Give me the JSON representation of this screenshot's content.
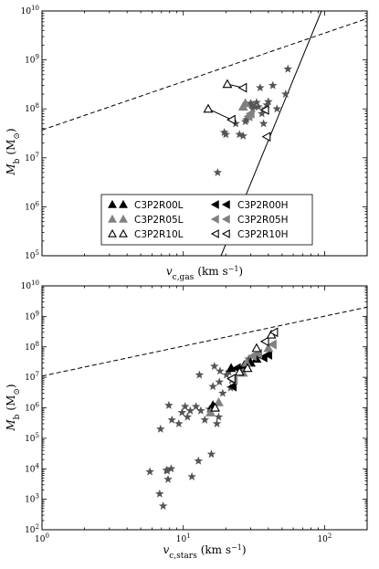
{
  "chart_data": [
    {
      "type": "scatter",
      "xlabel": "v_c,gas (km s⁻¹)",
      "ylabel": "M_b (M_⊙)",
      "xscale": "log",
      "yscale": "log",
      "xlim": [
        1,
        200
      ],
      "ylim": [
        100000,
        10000000000
      ],
      "y_ticks": [
        {
          "v": 100000,
          "b": "10",
          "e": "5"
        },
        {
          "v": 1000000,
          "b": "10",
          "e": "6"
        },
        {
          "v": 10000000,
          "b": "10",
          "e": "7"
        },
        {
          "v": 100000000,
          "b": "10",
          "e": "8"
        },
        {
          "v": 1000000000,
          "b": "10",
          "e": "9"
        },
        {
          "v": 10000000000,
          "b": "10",
          "e": "10"
        }
      ],
      "lines": [
        {
          "style": "dashed",
          "points": [
            [
              1,
              37000000
            ],
            [
              200,
              7000000000
            ]
          ]
        },
        {
          "style": "solid",
          "points": [
            [
              18.5,
              100000
            ],
            [
              95,
              10000000000
            ]
          ]
        }
      ],
      "stars": [
        [
          17.5,
          5000000
        ],
        [
          19.5,
          33000000
        ],
        [
          20,
          30000000
        ],
        [
          23.5,
          50000000
        ],
        [
          25,
          30000000
        ],
        [
          26.5,
          28000000
        ],
        [
          27.5,
          55000000
        ],
        [
          28,
          60000000
        ],
        [
          29.5,
          70000000
        ],
        [
          30,
          130000000
        ],
        [
          30.5,
          120000000
        ],
        [
          31,
          100000000
        ],
        [
          32,
          110000000
        ],
        [
          33,
          135000000
        ],
        [
          34,
          110000000
        ],
        [
          35,
          270000000
        ],
        [
          36,
          80000000
        ],
        [
          37,
          50000000
        ],
        [
          38,
          100000000
        ],
        [
          39,
          120000000
        ],
        [
          40,
          140000000
        ],
        [
          43,
          300000000
        ],
        [
          46,
          100000000
        ],
        [
          53,
          200000000
        ],
        [
          55,
          650000000
        ]
      ],
      "markers": [
        {
          "x": 26.5,
          "y": 110000000,
          "shape": "triangle-up",
          "fill": "#808080",
          "stroke": "#808080"
        },
        {
          "x": 27.5,
          "y": 130000000,
          "shape": "triangle-up",
          "fill": "#808080",
          "stroke": "#808080"
        },
        {
          "x": 29,
          "y": 70000000,
          "shape": "triangle-left",
          "fill": "#808080",
          "stroke": "#808080"
        },
        {
          "x": 30,
          "y": 80000000,
          "shape": "triangle-left",
          "fill": "#808080",
          "stroke": "#808080"
        },
        {
          "x": 20.5,
          "y": 320000000,
          "shape": "triangle-up",
          "fill": "#ffffff",
          "stroke": "#000000"
        },
        {
          "x": 15,
          "y": 100000000,
          "shape": "triangle-up",
          "fill": "#ffffff",
          "stroke": "#000000"
        },
        {
          "x": 26.5,
          "y": 270000000,
          "shape": "triangle-left",
          "fill": "#ffffff",
          "stroke": "#000000"
        },
        {
          "x": 22,
          "y": 60000000,
          "shape": "triangle-left",
          "fill": "#ffffff",
          "stroke": "#000000"
        },
        {
          "x": 38,
          "y": 95000000,
          "shape": "triangle-left",
          "fill": "#ffffff",
          "stroke": "#000000"
        },
        {
          "x": 39,
          "y": 27000000,
          "shape": "triangle-left",
          "fill": "#ffffff",
          "stroke": "#000000"
        }
      ],
      "connectors": [
        [
          [
            20.5,
            320000000
          ],
          [
            26.5,
            270000000
          ]
        ],
        [
          [
            15,
            100000000
          ],
          [
            22,
            60000000
          ]
        ]
      ],
      "legend": {
        "placement": "lower-center",
        "entries": [
          {
            "label": "C3P2R00L",
            "shape": "triangle-up",
            "fill": "#000000",
            "stroke": "#000000"
          },
          {
            "label": "C3P2R00H",
            "shape": "triangle-left",
            "fill": "#000000",
            "stroke": "#000000"
          },
          {
            "label": "C3P2R05L",
            "shape": "triangle-up",
            "fill": "#808080",
            "stroke": "#808080"
          },
          {
            "label": "C3P2R05H",
            "shape": "triangle-left",
            "fill": "#808080",
            "stroke": "#808080"
          },
          {
            "label": "C3P2R10L",
            "shape": "triangle-up",
            "fill": "#ffffff",
            "stroke": "#000000"
          },
          {
            "label": "C3P2R10H",
            "shape": "triangle-left",
            "fill": "#ffffff",
            "stroke": "#000000"
          }
        ]
      }
    },
    {
      "type": "scatter",
      "xlabel": "v_c,stars (km s⁻¹)",
      "ylabel": "M_b (M_⊙)",
      "xscale": "log",
      "yscale": "log",
      "xlim": [
        1,
        200
      ],
      "ylim": [
        100,
        10000000000
      ],
      "x_ticks": [
        {
          "v": 1,
          "b": "10",
          "e": "0"
        },
        {
          "v": 10,
          "b": "10",
          "e": "1"
        },
        {
          "v": 100,
          "b": "10",
          "e": "2"
        }
      ],
      "y_ticks": [
        {
          "v": 100,
          "b": "10",
          "e": "2"
        },
        {
          "v": 1000,
          "b": "10",
          "e": "3"
        },
        {
          "v": 10000,
          "b": "10",
          "e": "4"
        },
        {
          "v": 100000,
          "b": "10",
          "e": "5"
        },
        {
          "v": 1000000,
          "b": "10",
          "e": "6"
        },
        {
          "v": 10000000,
          "b": "10",
          "e": "7"
        },
        {
          "v": 100000000,
          "b": "10",
          "e": "8"
        },
        {
          "v": 1000000000,
          "b": "10",
          "e": "9"
        },
        {
          "v": 10000000000,
          "b": "10",
          "e": "10"
        }
      ],
      "lines": [
        {
          "style": "dashed",
          "points": [
            [
              1,
              11000000
            ],
            [
              200,
              2000000000
            ]
          ]
        }
      ],
      "stars": [
        [
          5.8,
          8000
        ],
        [
          6.8,
          1500
        ],
        [
          7.2,
          600
        ],
        [
          6.9,
          200000
        ],
        [
          7.6,
          9000
        ],
        [
          7.8,
          4500
        ],
        [
          7.7,
          8500
        ],
        [
          8.2,
          10000
        ],
        [
          7.9,
          1200000
        ],
        [
          8.3,
          400000
        ],
        [
          9.3,
          300000
        ],
        [
          9.8,
          700000
        ],
        [
          10.3,
          1100000
        ],
        [
          10.7,
          500000
        ],
        [
          11.2,
          800000
        ],
        [
          11.5,
          5500
        ],
        [
          12.3,
          1100000
        ],
        [
          12.8,
          18000
        ],
        [
          13,
          12000000
        ],
        [
          13.3,
          800000
        ],
        [
          14.2,
          400000
        ],
        [
          15.3,
          900000
        ],
        [
          15.8,
          30000
        ],
        [
          16.2,
          5000000
        ],
        [
          16.6,
          23000000
        ],
        [
          17.3,
          300000
        ],
        [
          17.8,
          500000
        ],
        [
          18,
          7000000
        ],
        [
          18.2,
          16000000
        ],
        [
          19,
          3000000
        ],
        [
          20.2,
          12000000
        ],
        [
          21,
          15000000
        ],
        [
          21.6,
          4500000
        ],
        [
          22,
          8000000
        ],
        [
          26,
          16000000
        ],
        [
          29,
          40000000
        ]
      ],
      "markers": [
        {
          "x": 16.2,
          "y": 1200000,
          "shape": "triangle-up",
          "fill": "#000000",
          "stroke": "#000000"
        },
        {
          "x": 16.6,
          "y": 1000000,
          "shape": "triangle-up",
          "fill": "#000000",
          "stroke": "#000000"
        },
        {
          "x": 21.8,
          "y": 20000000,
          "shape": "triangle-up",
          "fill": "#000000",
          "stroke": "#000000"
        },
        {
          "x": 22.4,
          "y": 5000000,
          "shape": "triangle-left",
          "fill": "#000000",
          "stroke": "#000000"
        },
        {
          "x": 24,
          "y": 20000000,
          "shape": "triangle-left",
          "fill": "#000000",
          "stroke": "#000000"
        },
        {
          "x": 27,
          "y": 25000000,
          "shape": "triangle-up",
          "fill": "#000000",
          "stroke": "#000000"
        },
        {
          "x": 30,
          "y": 30000000,
          "shape": "triangle-up",
          "fill": "#000000",
          "stroke": "#000000"
        },
        {
          "x": 33,
          "y": 40000000,
          "shape": "triangle-up",
          "fill": "#000000",
          "stroke": "#000000"
        },
        {
          "x": 37,
          "y": 45000000,
          "shape": "triangle-left",
          "fill": "#000000",
          "stroke": "#000000"
        },
        {
          "x": 40,
          "y": 55000000,
          "shape": "triangle-left",
          "fill": "#000000",
          "stroke": "#000000"
        },
        {
          "x": 15.6,
          "y": 700000,
          "shape": "triangle-up",
          "fill": "#808080",
          "stroke": "#808080"
        },
        {
          "x": 17.8,
          "y": 1500000,
          "shape": "triangle-up",
          "fill": "#808080",
          "stroke": "#808080"
        },
        {
          "x": 22.8,
          "y": 8000000,
          "shape": "triangle-left",
          "fill": "#808080",
          "stroke": "#808080"
        },
        {
          "x": 26.5,
          "y": 14000000,
          "shape": "triangle-up",
          "fill": "#808080",
          "stroke": "#808080"
        },
        {
          "x": 28,
          "y": 30000000,
          "shape": "triangle-up",
          "fill": "#808080",
          "stroke": "#808080"
        },
        {
          "x": 31,
          "y": 50000000,
          "shape": "triangle-left",
          "fill": "#808080",
          "stroke": "#808080"
        },
        {
          "x": 34,
          "y": 60000000,
          "shape": "triangle-left",
          "fill": "#808080",
          "stroke": "#808080"
        },
        {
          "x": 40,
          "y": 90000000,
          "shape": "triangle-up",
          "fill": "#808080",
          "stroke": "#808080"
        },
        {
          "x": 43,
          "y": 120000000,
          "shape": "triangle-left",
          "fill": "#808080",
          "stroke": "#808080"
        },
        {
          "x": 16.8,
          "y": 1000000,
          "shape": "triangle-up",
          "fill": "#ffffff",
          "stroke": "#000000"
        },
        {
          "x": 22,
          "y": 9000000,
          "shape": "triangle-left",
          "fill": "#ffffff",
          "stroke": "#000000"
        },
        {
          "x": 25,
          "y": 15000000,
          "shape": "triangle-up",
          "fill": "#ffffff",
          "stroke": "#000000"
        },
        {
          "x": 28.5,
          "y": 20000000,
          "shape": "triangle-up",
          "fill": "#ffffff",
          "stroke": "#000000"
        },
        {
          "x": 33,
          "y": 90000000,
          "shape": "triangle-up",
          "fill": "#ffffff",
          "stroke": "#000000"
        },
        {
          "x": 38,
          "y": 150000000,
          "shape": "triangle-left",
          "fill": "#ffffff",
          "stroke": "#000000"
        },
        {
          "x": 42,
          "y": 250000000,
          "shape": "triangle-up",
          "fill": "#ffffff",
          "stroke": "#000000"
        },
        {
          "x": 44,
          "y": 300000000,
          "shape": "triangle-left",
          "fill": "#ffffff",
          "stroke": "#000000"
        }
      ],
      "connectors": []
    }
  ]
}
